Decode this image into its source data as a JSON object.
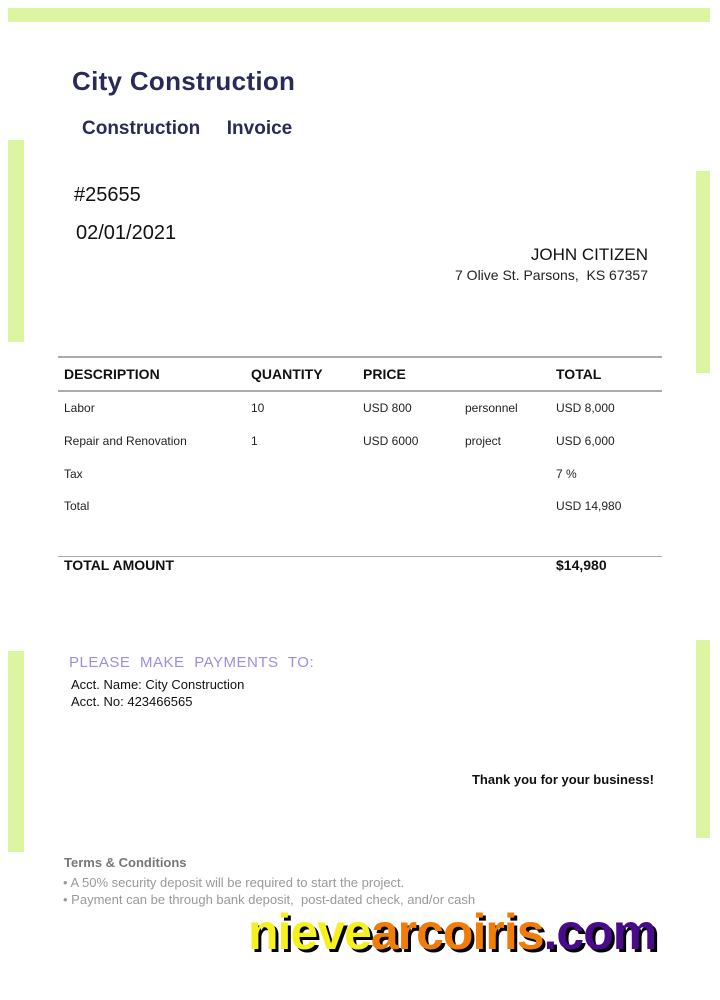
{
  "colors": {
    "accent_bar": "#dcf5a0",
    "title": "#2a2a5a",
    "payment_heading": "#9a8fe0"
  },
  "header": {
    "company": "City Construction",
    "subtitle": "Construction  Invoice"
  },
  "invoice": {
    "number": "#25655",
    "date": "02/01/2021"
  },
  "client": {
    "name": "JOHN CITIZEN",
    "address": "7 Olive St. Parsons,  KS 67357"
  },
  "table": {
    "headers": [
      "DESCRIPTION",
      "QUANTITY",
      "PRICE",
      "",
      "TOTAL"
    ],
    "rows": [
      [
        "Labor",
        "10",
        "USD 800",
        "personnel",
        "USD 8,000"
      ],
      [
        "Repair and Renovation",
        "1",
        "USD 6000",
        "project",
        "USD 6,000"
      ],
      [
        "Tax",
        "",
        "",
        "",
        "7 %"
      ],
      [
        "Total",
        "",
        "",
        "",
        "USD 14,980"
      ]
    ],
    "total_label": "TOTAL AMOUNT",
    "total_value": "$14,980"
  },
  "payment": {
    "heading": "PLEASE MAKE PAYMENTS TO:",
    "acct_name": "Acct. Name: City Construction",
    "acct_no": "Acct. No: 423466565"
  },
  "thanks": "Thank you for your business!",
  "terms": {
    "heading": "Terms & Conditions",
    "items": [
      "• A 50% security deposit will be required to start the project.",
      "• Payment can be through bank deposit,  post-dated check, and/or cash"
    ]
  },
  "watermark": {
    "parts": [
      {
        "text": "nieve",
        "color": "#f5f01e"
      },
      {
        "text": "arcoiris",
        "color": "#f07d0a"
      },
      {
        "text": ".com",
        "color": "#4a0a8c"
      }
    ]
  }
}
